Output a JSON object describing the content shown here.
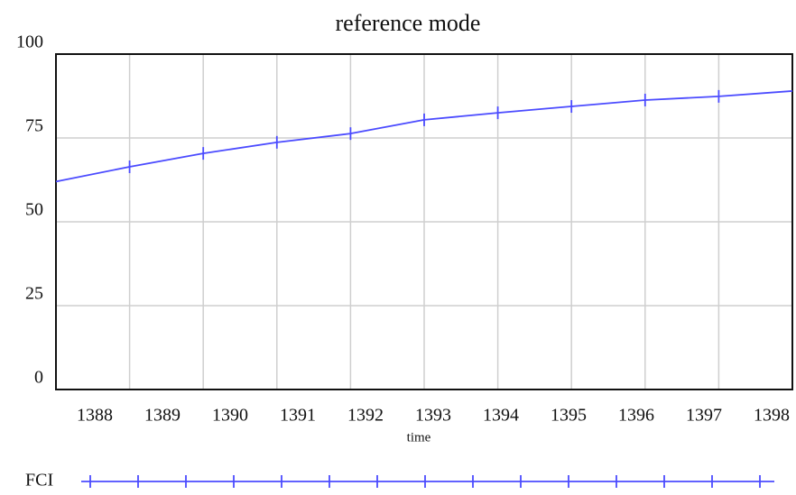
{
  "chart_data": {
    "type": "line",
    "title": "reference mode",
    "xlabel": "time",
    "x": [
      1388,
      1389,
      1390,
      1391,
      1392,
      1393,
      1394,
      1395,
      1396,
      1397,
      1398
    ],
    "series": [
      {
        "name": "FCI",
        "color": "#4b4bff",
        "values": [
          62,
          66.4,
          70.4,
          73.7,
          76.3,
          80.4,
          82.5,
          84.4,
          86.3,
          87.4,
          89
        ]
      }
    ],
    "xlim": [
      1388,
      1398
    ],
    "xticks": [
      1388,
      1389,
      1390,
      1391,
      1392,
      1393,
      1394,
      1395,
      1396,
      1397,
      1398
    ],
    "ylim": [
      0,
      100
    ],
    "yticks": [
      0,
      25,
      50,
      75,
      100
    ],
    "grid": true
  }
}
